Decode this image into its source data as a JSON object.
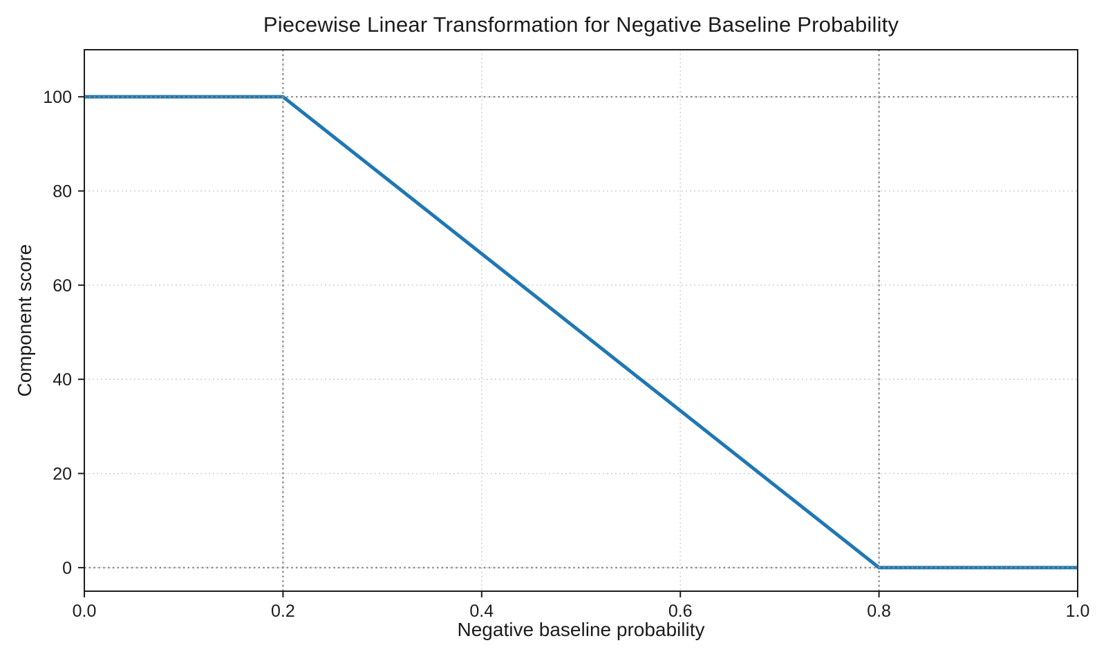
{
  "figure": {
    "background": "#ffffff"
  },
  "chart_data": {
    "type": "line",
    "title": "Piecewise Linear Transformation for Negative Baseline Probability",
    "xlabel": "Negative baseline probability",
    "ylabel": "Component score",
    "xlim": [
      0.0,
      1.0
    ],
    "ylim": [
      -5,
      110
    ],
    "xticks": {
      "values": [
        0.0,
        0.2,
        0.4,
        0.6,
        0.8,
        1.0
      ],
      "labels": [
        "0.0",
        "0.2",
        "0.4",
        "0.6",
        "0.8",
        "1.0"
      ]
    },
    "yticks": {
      "values": [
        0,
        20,
        40,
        60,
        80,
        100
      ],
      "labels": [
        "0",
        "20",
        "40",
        "60",
        "80",
        "100"
      ]
    },
    "series": [
      {
        "name": "component_score",
        "color": "#1f77b4",
        "line_width": 5,
        "points": [
          [
            0.0,
            100
          ],
          [
            0.2,
            100
          ],
          [
            0.8,
            0
          ],
          [
            1.0,
            0
          ]
        ]
      }
    ],
    "grid": {
      "on": true,
      "linestyle": "dotted",
      "color": "#c9c9c9"
    },
    "reference_lines": {
      "x": [
        0.2,
        0.8
      ],
      "y": [
        0,
        100
      ],
      "linestyle": "dotted",
      "color": "#8a8a8a"
    },
    "legend": "none",
    "spine_color": "#1c1c1c"
  }
}
